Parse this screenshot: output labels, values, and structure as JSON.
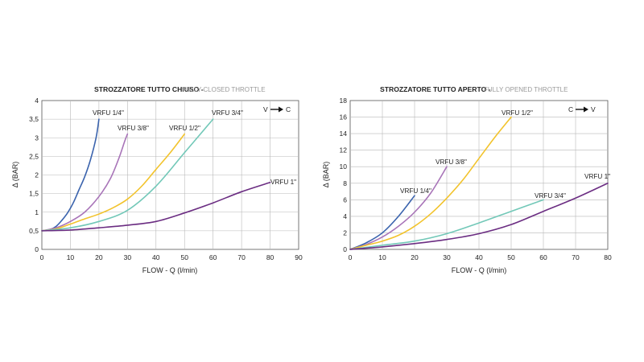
{
  "chart_data": [
    {
      "type": "line",
      "title": "STROZZATORE TUTTO CHIUSO -",
      "subtitle": "FULLY CLOSED THROTTLE",
      "xlabel": "FLOW - Q (l/min)",
      "ylabel": "Δ (BAR)",
      "xlim": [
        0,
        90
      ],
      "ylim": [
        0,
        4
      ],
      "xticks": [
        "0",
        "10",
        "20",
        "30",
        "40",
        "50",
        "60",
        "70",
        "80",
        "90"
      ],
      "yticks": [
        "0",
        "0,5",
        "1",
        "1,5",
        "2",
        "2,5",
        "3",
        "3,5",
        "4"
      ],
      "xtick_values": [
        0,
        10,
        20,
        30,
        40,
        50,
        60,
        70,
        80,
        90
      ],
      "ytick_values": [
        0,
        0.5,
        1,
        1.5,
        2,
        2.5,
        3,
        3.5,
        4
      ],
      "grid": true,
      "direction": {
        "from": "V",
        "to": "C"
      },
      "series": [
        {
          "name": "VRFU 1/4\"",
          "color": "#3a63ad",
          "x": [
            0,
            3,
            5,
            7,
            9,
            11,
            13,
            15,
            17,
            19,
            20
          ],
          "y": [
            0.5,
            0.54,
            0.62,
            0.78,
            0.98,
            1.25,
            1.6,
            1.95,
            2.4,
            3.0,
            3.5
          ]
        },
        {
          "name": "VRFU 3/8\"",
          "color": "#a874b8",
          "x": [
            0,
            5,
            10,
            15,
            20,
            24,
            27,
            29,
            30
          ],
          "y": [
            0.5,
            0.58,
            0.75,
            1.0,
            1.42,
            1.9,
            2.45,
            2.9,
            3.1
          ]
        },
        {
          "name": "VRFU 1/2\"",
          "color": "#f2c32c",
          "x": [
            0,
            5,
            10,
            15,
            20,
            25,
            30,
            35,
            40,
            45,
            50
          ],
          "y": [
            0.5,
            0.55,
            0.68,
            0.82,
            0.95,
            1.12,
            1.35,
            1.7,
            2.15,
            2.6,
            3.1
          ]
        },
        {
          "name": "VRFU 3/4\"",
          "color": "#72c8b8",
          "x": [
            0,
            10,
            20,
            30,
            40,
            50,
            60
          ],
          "y": [
            0.5,
            0.58,
            0.75,
            1.05,
            1.7,
            2.6,
            3.5
          ]
        },
        {
          "name": "VRFU 1\"",
          "color": "#6b2d82",
          "x": [
            0,
            10,
            20,
            30,
            40,
            50,
            60,
            70,
            80
          ],
          "y": [
            0.5,
            0.52,
            0.58,
            0.65,
            0.75,
            0.98,
            1.25,
            1.55,
            1.8
          ]
        }
      ]
    },
    {
      "type": "line",
      "title": "STROZZATORE TUTTO APERTO -",
      "subtitle": "FULLY OPENED THROTTLE",
      "xlabel": "FLOW - Q (l/min)",
      "ylabel": "Δ (BAR)",
      "xlim": [
        0,
        80
      ],
      "ylim": [
        0,
        18
      ],
      "xticks": [
        "0",
        "10",
        "20",
        "30",
        "40",
        "50",
        "60",
        "70",
        "80"
      ],
      "yticks": [
        "0",
        "2",
        "4",
        "6",
        "8",
        "10",
        "12",
        "14",
        "16",
        "18"
      ],
      "xtick_values": [
        0,
        10,
        20,
        30,
        40,
        50,
        60,
        70,
        80
      ],
      "ytick_values": [
        0,
        2,
        4,
        6,
        8,
        10,
        12,
        14,
        16,
        18
      ],
      "grid": true,
      "direction": {
        "from": "C",
        "to": "V"
      },
      "series": [
        {
          "name": "VRFU 1/4\"",
          "color": "#3a63ad",
          "x": [
            0,
            5,
            10,
            15,
            20
          ],
          "y": [
            0,
            0.8,
            2.0,
            4.0,
            6.5
          ]
        },
        {
          "name": "VRFU 3/8\"",
          "color": "#a874b8",
          "x": [
            0,
            5,
            10,
            15,
            20,
            25,
            30
          ],
          "y": [
            0,
            0.6,
            1.5,
            2.8,
            4.5,
            6.8,
            10
          ]
        },
        {
          "name": "VRFU 1/2\"",
          "color": "#f2c32c",
          "x": [
            0,
            5,
            10,
            15,
            20,
            25,
            30,
            35,
            40,
            45,
            50
          ],
          "y": [
            0,
            0.5,
            1.0,
            1.7,
            2.8,
            4.3,
            6.2,
            8.4,
            11.0,
            13.6,
            16
          ]
        },
        {
          "name": "VRFU 3/4\"",
          "color": "#72c8b8",
          "x": [
            0,
            10,
            20,
            30,
            40,
            50,
            60
          ],
          "y": [
            0,
            0.5,
            1.0,
            1.9,
            3.2,
            4.6,
            6.0
          ]
        },
        {
          "name": "VRFU 1\"",
          "color": "#6b2d82",
          "x": [
            0,
            10,
            20,
            30,
            40,
            50,
            60,
            70,
            80
          ],
          "y": [
            0,
            0.3,
            0.7,
            1.2,
            1.9,
            3.0,
            4.6,
            6.2,
            8.0
          ]
        }
      ]
    }
  ]
}
